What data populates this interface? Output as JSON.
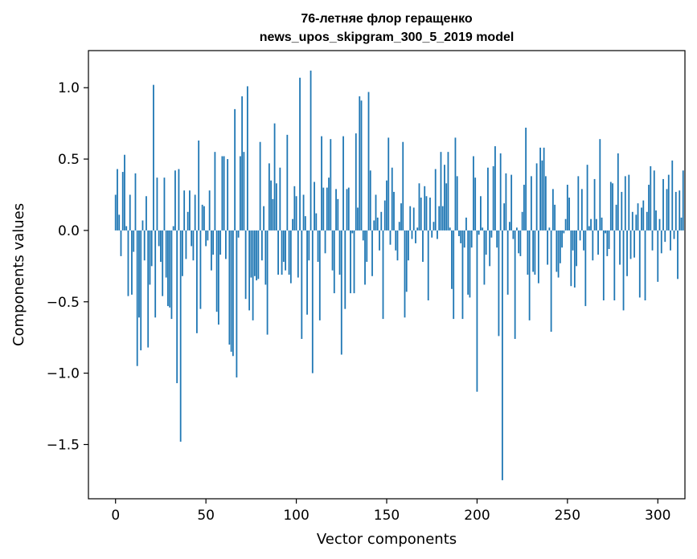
{
  "chart_data": {
    "type": "bar",
    "title": [
      "76-летняе флор геращенко",
      "news_upos_skipgram_300_5_2019 model"
    ],
    "xlabel": "Vector components",
    "ylabel": "Components values",
    "xlim": [
      -15,
      315
    ],
    "ylim": [
      -1.88,
      1.26
    ],
    "xticks": [
      0,
      50,
      100,
      150,
      200,
      250,
      300
    ],
    "xtick_labels": [
      "0",
      "50",
      "100",
      "150",
      "200",
      "250",
      "300"
    ],
    "yticks": [
      -1.5,
      -1.0,
      -0.5,
      0.0,
      0.5,
      1.0
    ],
    "ytick_labels": [
      "−1.5",
      "−1.0",
      "−0.5",
      "0.0",
      "0.5",
      "1.0"
    ],
    "grid": false,
    "bar_color": "#1f77b4",
    "values": [
      0.25,
      0.43,
      0.11,
      -0.18,
      0.41,
      0.53,
      0.03,
      -0.46,
      0.25,
      -0.45,
      -0.15,
      0.4,
      -0.95,
      -0.61,
      -0.84,
      0.07,
      -0.21,
      0.24,
      -0.82,
      -0.38,
      -0.25,
      1.02,
      -0.61,
      0.37,
      -0.11,
      -0.22,
      -0.46,
      0.37,
      -0.33,
      -0.53,
      -0.54,
      -0.62,
      0.03,
      0.42,
      -1.07,
      0.43,
      -1.48,
      -0.32,
      0.28,
      -0.2,
      0.13,
      0.28,
      -0.11,
      -0.21,
      0.25,
      -0.72,
      0.63,
      -0.55,
      0.18,
      0.17,
      -0.11,
      -0.07,
      0.28,
      -0.28,
      -0.17,
      0.55,
      -0.57,
      -0.66,
      -0.17,
      0.52,
      0.52,
      -0.2,
      0.5,
      -0.8,
      -0.85,
      -0.88,
      0.85,
      -1.03,
      -0.05,
      0.52,
      0.94,
      0.55,
      -0.48,
      1.01,
      -0.56,
      -0.33,
      -0.63,
      -0.32,
      -0.35,
      -0.34,
      0.62,
      -0.21,
      0.17,
      -0.38,
      -0.73,
      0.47,
      0.35,
      0.22,
      0.75,
      0.33,
      -0.31,
      0.44,
      -0.31,
      -0.22,
      -0.28,
      0.67,
      -0.31,
      -0.37,
      0.08,
      0.31,
      0.24,
      -0.33,
      1.07,
      -0.76,
      0.25,
      0.1,
      -0.59,
      -0.21,
      1.12,
      -1.0,
      0.34,
      0.12,
      -0.22,
      -0.63,
      0.66,
      0.3,
      -0.16,
      0.3,
      0.37,
      0.64,
      -0.28,
      -0.44,
      0.29,
      0.22,
      -0.31,
      -0.87,
      0.66,
      -0.55,
      0.29,
      0.3,
      -0.44,
      -0.02,
      -0.44,
      0.68,
      0.16,
      0.94,
      0.91,
      -0.07,
      -0.38,
      -0.22,
      0.97,
      0.42,
      -0.32,
      0.07,
      0.25,
      0.09,
      -0.14,
      0.13,
      -0.62,
      0.21,
      0.35,
      0.65,
      -0.1,
      0.44,
      0.27,
      -0.14,
      -0.21,
      0.06,
      0.19,
      0.62,
      -0.61,
      -0.43,
      -0.21,
      0.17,
      -0.06,
      0.16,
      -0.09,
      0.02,
      0.33,
      0.23,
      -0.22,
      0.31,
      0.24,
      -0.49,
      0.23,
      -0.05,
      0.06,
      0.43,
      -0.06,
      0.17,
      0.55,
      0.17,
      0.46,
      0.33,
      0.55,
      0.02,
      -0.41,
      -0.62,
      0.65,
      0.38,
      -0.04,
      -0.09,
      -0.62,
      -0.12,
      0.09,
      -0.45,
      -0.47,
      -0.12,
      0.52,
      0.37,
      -1.13,
      -0.03,
      0.24,
      0.02,
      -0.38,
      -0.17,
      0.44,
      -0.25,
      -0.05,
      0.45,
      0.59,
      -0.12,
      -0.74,
      0.54,
      -1.75,
      0.19,
      0.4,
      -0.45,
      0.06,
      0.39,
      -0.06,
      -0.76,
      0.02,
      -0.16,
      -0.18,
      0.13,
      0.32,
      0.72,
      -0.31,
      -0.63,
      0.38,
      -0.29,
      -0.31,
      0.47,
      -0.37,
      0.58,
      0.49,
      0.58,
      0.38,
      -0.24,
      0.02,
      -0.71,
      0.29,
      0.18,
      -0.29,
      -0.33,
      -0.23,
      -0.12,
      -0.02,
      0.08,
      0.32,
      0.23,
      -0.39,
      -0.14,
      -0.4,
      -0.25,
      0.38,
      -0.07,
      0.29,
      -0.14,
      -0.53,
      0.46,
      0.03,
      0.08,
      -0.21,
      0.36,
      0.08,
      -0.17,
      0.64,
      0.09,
      -0.49,
      -0.02,
      -0.18,
      -0.13,
      0.34,
      0.33,
      -0.49,
      0.18,
      0.54,
      -0.24,
      0.27,
      -0.56,
      0.38,
      -0.32,
      0.39,
      -0.2,
      0.13,
      -0.19,
      0.11,
      0.19,
      -0.47,
      0.16,
      0.21,
      -0.49,
      0.13,
      0.32,
      0.45,
      -0.14,
      0.42,
      0.14,
      -0.36,
      0.08,
      -0.16,
      0.36,
      -0.08,
      0.29,
      0.39,
      -0.14,
      0.49,
      -0.06,
      0.27,
      -0.34,
      0.28,
      0.09,
      0.42
    ]
  }
}
